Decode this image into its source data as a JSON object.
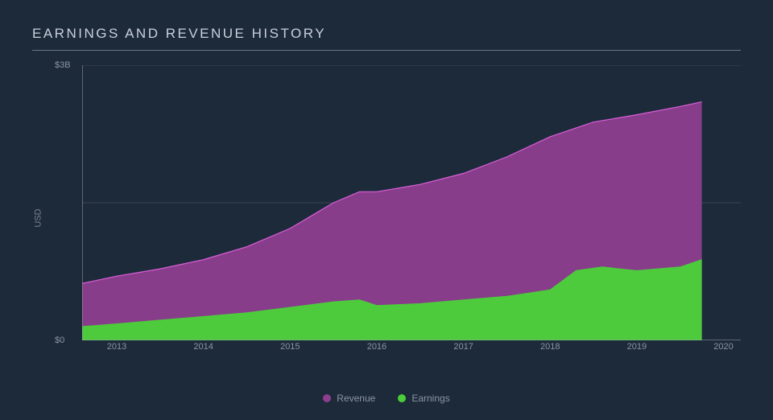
{
  "chart": {
    "type": "area",
    "title": "EARNINGS AND REVENUE HISTORY",
    "y_axis_label": "USD",
    "background_color": "#1d2a3a",
    "title_color": "#c8d0db",
    "title_fontsize": 17,
    "title_letter_spacing": 2.5,
    "axis_text_color": "#8a94a4",
    "axis_line_color": "#9aa4b4",
    "grid_line_color": "#3a4656",
    "label_fontsize": 11,
    "xlim": [
      2012.6,
      2020.2
    ],
    "ylim": [
      0,
      3.0
    ],
    "y_ticks": [
      {
        "value": 0,
        "label": "$0"
      },
      {
        "value": 3.0,
        "label": "$3B"
      }
    ],
    "x_ticks": [
      2013,
      2014,
      2015,
      2016,
      2017,
      2018,
      2019,
      2020
    ],
    "gridlines_y": [
      1.5,
      3.0
    ],
    "series": [
      {
        "name": "Revenue",
        "fill_color": "#8e3e8e",
        "fill_opacity": 0.95,
        "stroke_color": "#d85fd8",
        "stroke_width": 1.2,
        "data": [
          {
            "x": 2012.6,
            "y": 0.62
          },
          {
            "x": 2013.0,
            "y": 0.7
          },
          {
            "x": 2013.5,
            "y": 0.78
          },
          {
            "x": 2014.0,
            "y": 0.88
          },
          {
            "x": 2014.5,
            "y": 1.02
          },
          {
            "x": 2015.0,
            "y": 1.22
          },
          {
            "x": 2015.5,
            "y": 1.5
          },
          {
            "x": 2015.8,
            "y": 1.62
          },
          {
            "x": 2016.0,
            "y": 1.62
          },
          {
            "x": 2016.5,
            "y": 1.7
          },
          {
            "x": 2017.0,
            "y": 1.82
          },
          {
            "x": 2017.5,
            "y": 2.0
          },
          {
            "x": 2018.0,
            "y": 2.22
          },
          {
            "x": 2018.5,
            "y": 2.38
          },
          {
            "x": 2019.0,
            "y": 2.46
          },
          {
            "x": 2019.5,
            "y": 2.55
          },
          {
            "x": 2019.75,
            "y": 2.6
          }
        ]
      },
      {
        "name": "Earnings",
        "fill_color": "#4bce3a",
        "fill_opacity": 0.98,
        "stroke_color": "#4bce3a",
        "stroke_width": 1.0,
        "data": [
          {
            "x": 2012.6,
            "y": 0.15
          },
          {
            "x": 2013.0,
            "y": 0.18
          },
          {
            "x": 2013.5,
            "y": 0.22
          },
          {
            "x": 2014.0,
            "y": 0.26
          },
          {
            "x": 2014.5,
            "y": 0.3
          },
          {
            "x": 2015.0,
            "y": 0.36
          },
          {
            "x": 2015.5,
            "y": 0.42
          },
          {
            "x": 2015.8,
            "y": 0.44
          },
          {
            "x": 2016.0,
            "y": 0.38
          },
          {
            "x": 2016.5,
            "y": 0.4
          },
          {
            "x": 2017.0,
            "y": 0.44
          },
          {
            "x": 2017.5,
            "y": 0.48
          },
          {
            "x": 2018.0,
            "y": 0.55
          },
          {
            "x": 2018.3,
            "y": 0.76
          },
          {
            "x": 2018.6,
            "y": 0.8
          },
          {
            "x": 2019.0,
            "y": 0.76
          },
          {
            "x": 2019.5,
            "y": 0.8
          },
          {
            "x": 2019.75,
            "y": 0.88
          }
        ]
      }
    ],
    "legend": {
      "items": [
        {
          "label": "Revenue",
          "color": "#8e3e8e"
        },
        {
          "label": "Earnings",
          "color": "#4bce3a"
        }
      ]
    }
  }
}
